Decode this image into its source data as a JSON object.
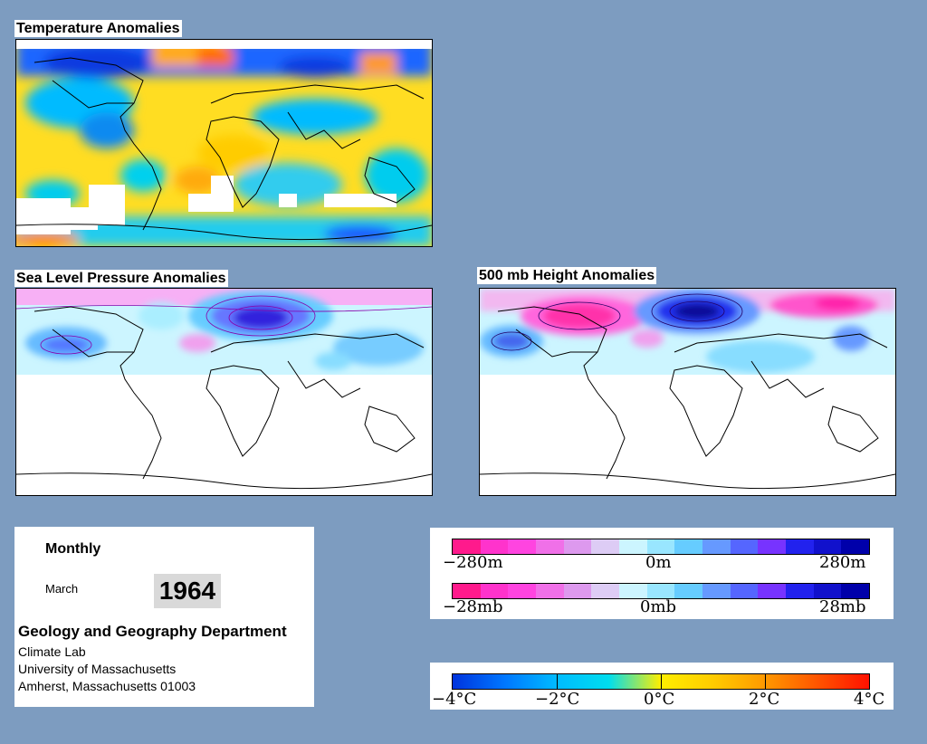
{
  "panels": {
    "temperature": {
      "title": "Temperature Anomalies"
    },
    "slp": {
      "title": "Sea Level Pressure Anomalies"
    },
    "height500": {
      "title": "500 mb Height Anomalies"
    }
  },
  "info": {
    "period": "Monthly",
    "month": "March",
    "year": "1964",
    "department": "Geology and Geography Department",
    "lab": "Climate Lab",
    "university": "University of Massachusetts",
    "address": "Amherst, Massachusetts 01003"
  },
  "legends": {
    "height": {
      "min": "−280m",
      "mid": "0m",
      "max": "280m"
    },
    "pressure": {
      "min": "−28mb",
      "mid": "0mb",
      "max": "28mb"
    },
    "temperature": {
      "t1": "−4°C",
      "t2": "−2°C",
      "t3": "0°C",
      "t4": "2°C",
      "t5": "4°C"
    }
  },
  "colors": {
    "background": "#7d9cc0",
    "pink_scale": [
      "#ff1a8c",
      "#ff33cc",
      "#ff44e0",
      "#f070e8",
      "#dd99ee",
      "#ddccf5",
      "#ccf5ff",
      "#99e6ff",
      "#66ccff",
      "#6699ff",
      "#5566ff",
      "#7733ff",
      "#2222ee",
      "#1111cc",
      "#0000aa"
    ],
    "temp_scale": [
      "#0033dd",
      "#0077ff",
      "#00bbff",
      "#00ddee",
      "#ffee00",
      "#ffcc00",
      "#ff9900",
      "#ff5500",
      "#ff1100"
    ]
  }
}
